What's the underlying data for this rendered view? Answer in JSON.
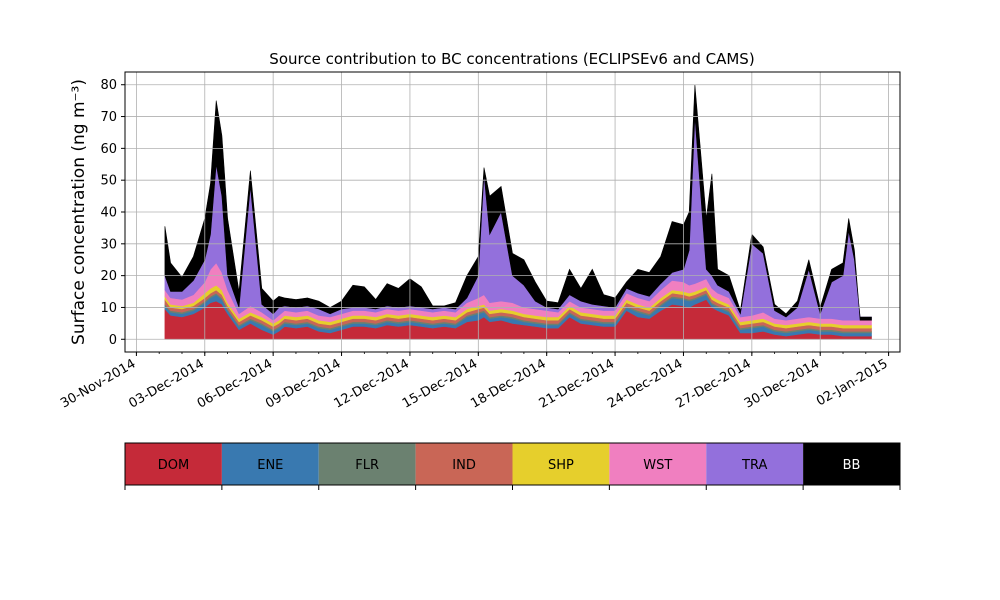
{
  "chart_data": {
    "type": "area",
    "stacked": true,
    "title": "Source contribution to BC concentrations (ECLIPSEv6 and CAMS)",
    "ylabel": "Surface concentration (ng m⁻³)",
    "xlabel": "",
    "ylim": [
      -4,
      84
    ],
    "xlim": [
      "2014-11-29T12:00",
      "2015-01-02T12:00"
    ],
    "grid": true,
    "y_ticks": [
      0,
      10,
      20,
      30,
      40,
      50,
      60,
      70,
      80
    ],
    "x_ticks": [
      "30-Nov-2014",
      "03-Dec-2014",
      "06-Dec-2014",
      "09-Dec-2014",
      "12-Dec-2014",
      "15-Dec-2014",
      "18-Dec-2014",
      "21-Dec-2014",
      "24-Dec-2014",
      "27-Dec-2014",
      "30-Dec-2014",
      "02-Jan-2015"
    ],
    "x_tick_dates": [
      "2014-11-30",
      "2014-12-03",
      "2014-12-06",
      "2014-12-09",
      "2014-12-12",
      "2014-12-15",
      "2014-12-18",
      "2014-12-21",
      "2014-12-24",
      "2014-12-27",
      "2014-12-30",
      "2015-01-02"
    ],
    "legend_placement": "below",
    "legend": [
      "DOM",
      "ENE",
      "FLR",
      "IND",
      "SHP",
      "WST",
      "TRA",
      "BB"
    ],
    "series": [
      {
        "name": "DOM",
        "color": "#c52a39"
      },
      {
        "name": "ENE",
        "color": "#3979b0"
      },
      {
        "name": "FLR",
        "color": "#6b8170"
      },
      {
        "name": "IND",
        "color": "#c96656"
      },
      {
        "name": "SHP",
        "color": "#e6cf2c"
      },
      {
        "name": "WST",
        "color": "#f07fc0"
      },
      {
        "name": "TRA",
        "color": "#9370dc"
      },
      {
        "name": "BB",
        "color": "#000000"
      }
    ],
    "totals_by_layer": {
      "x": [
        "2014-12-01T06:00",
        "2014-12-01T12:00",
        "2014-12-02T00:00",
        "2014-12-02T12:00",
        "2014-12-03T00:00",
        "2014-12-03T06:00",
        "2014-12-03T12:00",
        "2014-12-03T18:00",
        "2014-12-04T00:00",
        "2014-12-04T12:00",
        "2014-12-05T00:00",
        "2014-12-05T12:00",
        "2014-12-06T00:00",
        "2014-12-06T06:00",
        "2014-12-06T12:00",
        "2014-12-07T00:00",
        "2014-12-07T12:00",
        "2014-12-08T00:00",
        "2014-12-08T12:00",
        "2014-12-09T00:00",
        "2014-12-09T12:00",
        "2014-12-10T00:00",
        "2014-12-10T12:00",
        "2014-12-11T00:00",
        "2014-12-11T12:00",
        "2014-12-12T00:00",
        "2014-12-12T12:00",
        "2014-12-13T00:00",
        "2014-12-13T12:00",
        "2014-12-14T00:00",
        "2014-12-14T12:00",
        "2014-12-15T00:00",
        "2014-12-15T06:00",
        "2014-12-15T12:00",
        "2014-12-16T00:00",
        "2014-12-16T12:00",
        "2014-12-17T00:00",
        "2014-12-17T12:00",
        "2014-12-18T00:00",
        "2014-12-18T12:00",
        "2014-12-19T00:00",
        "2014-12-19T12:00",
        "2014-12-20T00:00",
        "2014-12-20T12:00",
        "2014-12-21T00:00",
        "2014-12-21T12:00",
        "2014-12-22T00:00",
        "2014-12-22T12:00",
        "2014-12-23T00:00",
        "2014-12-23T12:00",
        "2014-12-24T00:00",
        "2014-12-24T06:00",
        "2014-12-24T12:00",
        "2014-12-25T00:00",
        "2014-12-25T06:00",
        "2014-12-25T12:00",
        "2014-12-26T00:00",
        "2014-12-26T12:00",
        "2014-12-27T00:00",
        "2014-12-27T12:00",
        "2014-12-28T00:00",
        "2014-12-28T12:00",
        "2014-12-29T00:00",
        "2014-12-29T12:00",
        "2014-12-30T00:00",
        "2014-12-30T12:00",
        "2014-12-31T00:00",
        "2014-12-31T06:00",
        "2014-12-31T12:00",
        "2014-12-31T18:00",
        "2015-01-01T06:00"
      ],
      "DOM": [
        9.5,
        7.5,
        7.0,
        8.0,
        10.0,
        11.5,
        12.0,
        11.0,
        8.0,
        3.0,
        5.0,
        3.0,
        1.5,
        2.5,
        4.0,
        3.5,
        4.0,
        2.5,
        2.0,
        3.0,
        4.0,
        4.0,
        3.5,
        4.5,
        4.0,
        4.5,
        4.0,
        3.5,
        4.0,
        3.5,
        5.5,
        6.0,
        7.0,
        5.5,
        6.0,
        5.0,
        4.5,
        4.0,
        3.5,
        3.5,
        7.0,
        5.0,
        4.5,
        4.0,
        4.0,
        9.0,
        7.0,
        6.5,
        9.0,
        11.0,
        10.5,
        10.0,
        11.0,
        12.5,
        10.0,
        9.0,
        7.5,
        2.0,
        2.0,
        2.5,
        1.5,
        1.0,
        1.5,
        2.0,
        1.5,
        1.5,
        1.0,
        1.0,
        1.0,
        1.0,
        1.0
      ],
      "ENE": [
        10.5,
        8.5,
        8.0,
        9.0,
        11.5,
        13.0,
        14.0,
        12.5,
        9.0,
        4.0,
        6.0,
        4.5,
        2.5,
        3.5,
        5.0,
        4.5,
        5.0,
        3.5,
        3.0,
        4.0,
        5.0,
        5.0,
        4.5,
        5.5,
        5.0,
        5.5,
        5.0,
        4.5,
        5.0,
        4.5,
        7.0,
        8.0,
        8.5,
        6.5,
        7.0,
        6.5,
        5.5,
        5.0,
        4.5,
        4.5,
        8.0,
        6.0,
        5.5,
        5.0,
        5.0,
        10.0,
        8.5,
        7.5,
        10.5,
        13.0,
        12.5,
        12.0,
        12.5,
        14.0,
        11.0,
        10.0,
        8.5,
        3.0,
        3.5,
        4.0,
        2.5,
        2.0,
        2.5,
        3.0,
        2.5,
        2.5,
        2.0,
        2.0,
        2.0,
        2.0,
        2.0
      ],
      "FLR": [
        11.0,
        9.0,
        8.5,
        9.5,
        12.0,
        13.5,
        14.5,
        13.0,
        9.5,
        4.5,
        6.5,
        5.0,
        3.0,
        4.0,
        5.5,
        5.0,
        5.5,
        4.0,
        3.5,
        4.5,
        5.5,
        5.5,
        5.0,
        6.0,
        5.5,
        6.0,
        5.5,
        5.0,
        5.5,
        5.0,
        7.5,
        8.5,
        9.0,
        7.0,
        7.5,
        7.0,
        6.0,
        5.5,
        5.0,
        5.0,
        8.5,
        6.5,
        6.0,
        5.5,
        5.5,
        10.5,
        9.0,
        8.0,
        11.0,
        13.5,
        13.0,
        12.5,
        13.0,
        14.5,
        11.5,
        10.5,
        9.0,
        3.5,
        4.0,
        4.5,
        3.0,
        2.5,
        3.0,
        3.5,
        3.0,
        3.0,
        2.5,
        2.5,
        2.5,
        2.5,
        2.5
      ],
      "IND": [
        12.5,
        10.0,
        9.5,
        10.5,
        13.0,
        14.5,
        15.5,
        14.0,
        10.5,
        5.5,
        7.5,
        6.0,
        4.0,
        5.0,
        6.5,
        6.0,
        6.5,
        5.0,
        4.5,
        5.5,
        6.5,
        6.5,
        6.0,
        7.0,
        6.5,
        7.0,
        6.5,
        6.0,
        6.5,
        6.0,
        8.5,
        9.5,
        10.0,
        8.0,
        8.5,
        8.0,
        7.0,
        6.5,
        6.0,
        6.0,
        9.5,
        7.5,
        7.0,
        6.5,
        6.5,
        11.5,
        10.0,
        9.0,
        12.0,
        14.5,
        14.0,
        13.5,
        14.0,
        15.5,
        12.5,
        11.5,
        10.0,
        4.5,
        5.0,
        5.5,
        4.0,
        3.5,
        4.0,
        4.5,
        4.0,
        4.0,
        3.5,
        3.5,
        3.5,
        3.5,
        3.5
      ],
      "SHP": [
        13.5,
        11.0,
        10.5,
        11.5,
        14.5,
        16.0,
        17.0,
        15.5,
        11.5,
        6.5,
        8.5,
        7.0,
        5.0,
        6.0,
        7.5,
        7.0,
        7.5,
        6.0,
        5.5,
        6.5,
        7.5,
        7.5,
        7.0,
        8.0,
        7.5,
        8.0,
        7.5,
        7.0,
        7.5,
        7.0,
        9.5,
        10.5,
        11.0,
        9.0,
        9.5,
        9.0,
        8.0,
        7.5,
        7.0,
        7.0,
        10.5,
        8.5,
        8.0,
        7.5,
        7.5,
        12.5,
        11.0,
        10.0,
        13.0,
        15.5,
        15.0,
        14.5,
        15.0,
        16.5,
        13.5,
        12.5,
        11.0,
        5.5,
        6.0,
        6.5,
        5.0,
        4.5,
        5.0,
        5.5,
        5.0,
        5.0,
        4.5,
        4.5,
        4.5,
        4.5,
        4.5
      ],
      "WST": [
        15.5,
        13.0,
        12.5,
        14.0,
        18.0,
        22.0,
        24.0,
        21.0,
        15.5,
        8.0,
        10.5,
        8.5,
        6.0,
        7.5,
        9.0,
        8.5,
        9.0,
        7.5,
        7.0,
        8.0,
        9.0,
        9.0,
        8.5,
        9.5,
        9.0,
        9.5,
        9.0,
        8.5,
        9.0,
        8.5,
        11.5,
        13.0,
        14.0,
        11.5,
        12.0,
        11.5,
        10.0,
        9.5,
        9.0,
        8.5,
        12.0,
        10.0,
        9.5,
        9.0,
        9.0,
        14.5,
        13.0,
        12.0,
        15.5,
        18.5,
        18.0,
        17.0,
        17.5,
        19.0,
        16.0,
        14.5,
        13.0,
        7.0,
        7.5,
        8.5,
        6.5,
        6.0,
        6.5,
        7.0,
        6.5,
        6.5,
        6.0,
        6.0,
        6.0,
        6.0,
        6.0
      ],
      "TRA": [
        20.0,
        15.0,
        15.0,
        18.5,
        25.0,
        33.0,
        55.0,
        45.0,
        20.0,
        10.0,
        48.0,
        11.0,
        8.0,
        10.0,
        10.5,
        10.0,
        10.5,
        9.5,
        8.0,
        9.5,
        10.0,
        10.0,
        9.5,
        10.5,
        10.0,
        10.5,
        10.0,
        9.5,
        10.0,
        9.5,
        13.0,
        20.0,
        52.0,
        33.0,
        40.0,
        20.0,
        17.0,
        12.0,
        10.0,
        9.5,
        14.0,
        12.0,
        11.0,
        10.5,
        10.0,
        16.0,
        14.5,
        13.5,
        17.5,
        21.0,
        22.0,
        28.0,
        70.0,
        22.0,
        20.0,
        17.0,
        15.0,
        8.0,
        30.0,
        27.0,
        9.0,
        7.0,
        10.0,
        22.0,
        8.0,
        18.0,
        20.0,
        34.0,
        25.0,
        7.0,
        7.0
      ],
      "BB": [
        35.5,
        24.0,
        19.5,
        26.0,
        38.0,
        49.0,
        75.0,
        64.0,
        38.0,
        15.0,
        53.0,
        16.0,
        12.0,
        13.5,
        13.0,
        12.5,
        13.0,
        12.0,
        10.0,
        12.0,
        17.0,
        16.5,
        12.5,
        17.5,
        16.0,
        19.0,
        16.5,
        10.5,
        10.5,
        11.5,
        20.0,
        26.0,
        54.0,
        45.0,
        48.0,
        27.0,
        25.0,
        18.0,
        12.0,
        11.5,
        22.0,
        16.0,
        22.0,
        14.0,
        13.0,
        18.0,
        22.0,
        21.0,
        26.0,
        37.0,
        36.0,
        40.0,
        80.0,
        38.0,
        52.0,
        22.0,
        20.0,
        9.0,
        33.0,
        29.0,
        11.0,
        8.0,
        12.0,
        25.0,
        10.0,
        22.0,
        24.0,
        38.0,
        28.0,
        6.0,
        6.0
      ]
    }
  }
}
